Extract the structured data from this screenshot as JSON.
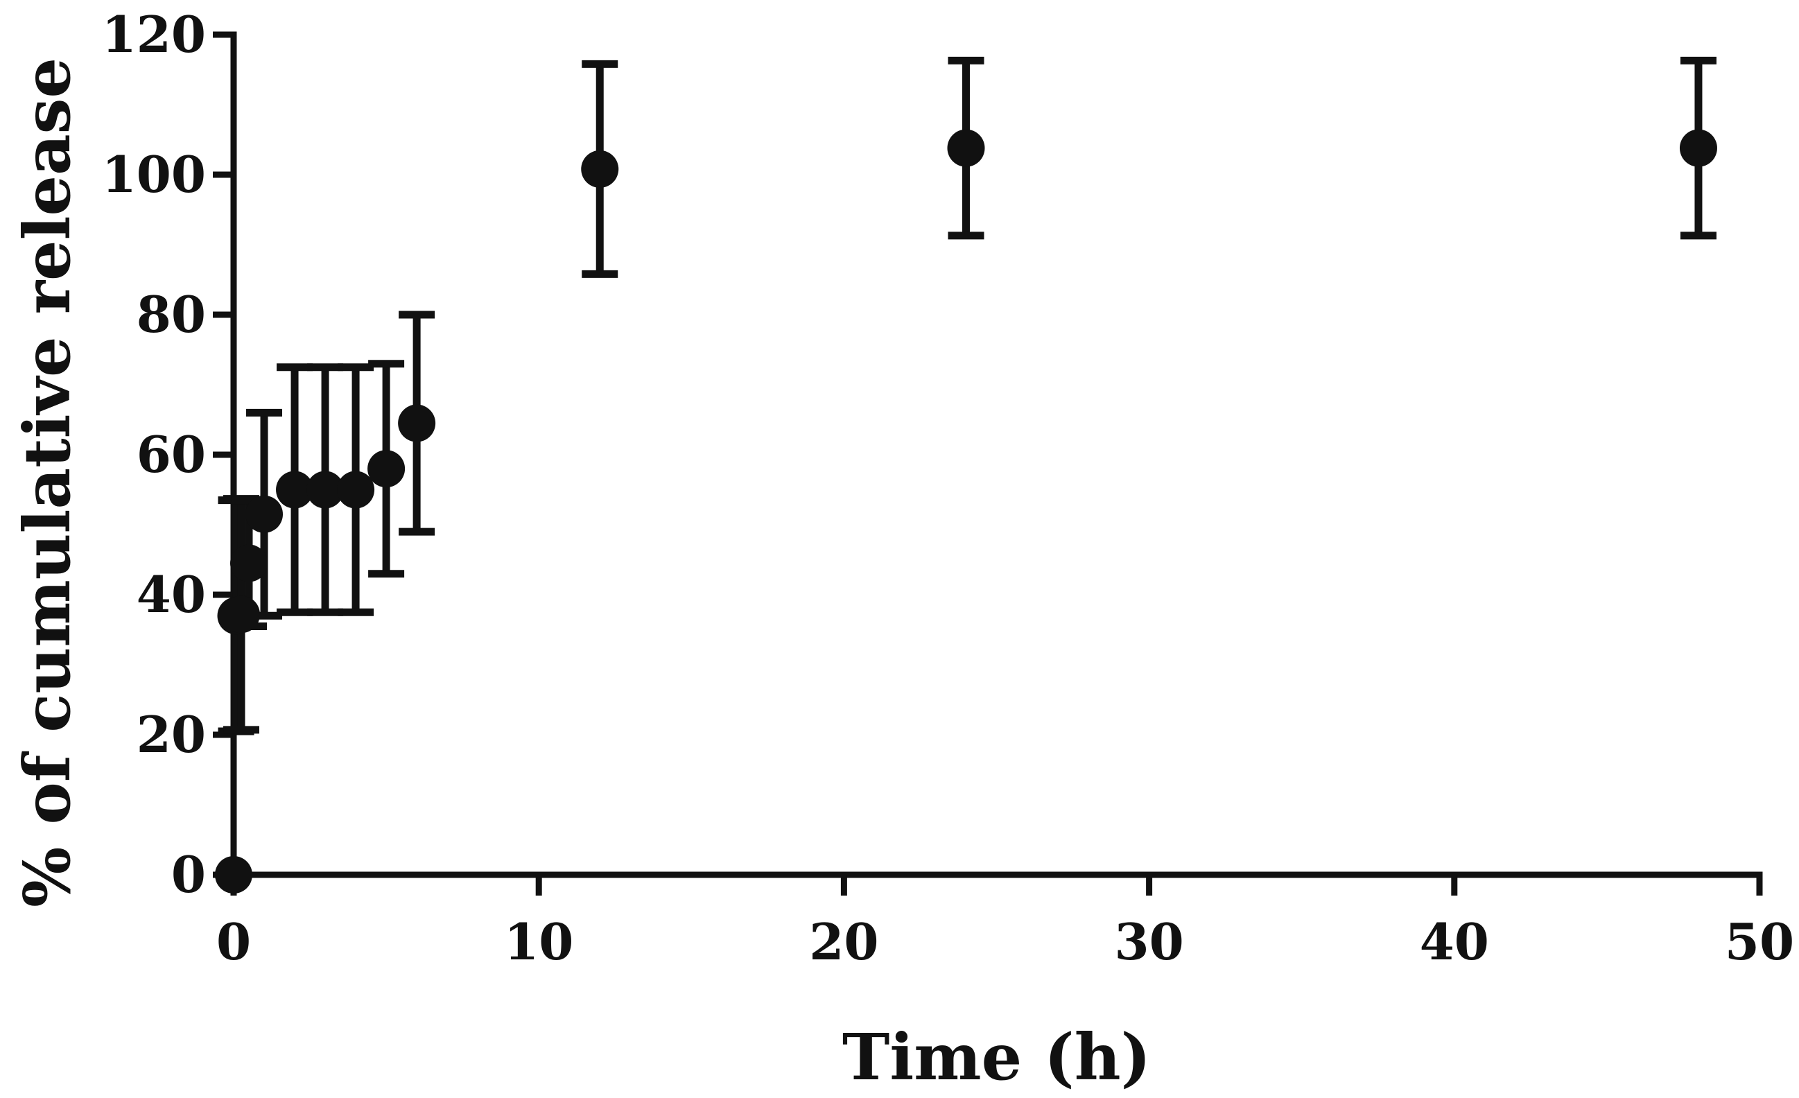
{
  "chart_data": {
    "type": "scatter",
    "title": "",
    "xlabel": "Time (h)",
    "ylabel": "% of cumulative release",
    "xlim": [
      0,
      50
    ],
    "ylim": [
      0,
      120
    ],
    "x_ticks": [
      0,
      10,
      20,
      30,
      40,
      50
    ],
    "y_ticks": [
      0,
      20,
      40,
      60,
      80,
      100,
      120
    ],
    "x_tick_labels": [
      "0",
      "10",
      "20",
      "30",
      "40",
      "50"
    ],
    "y_tick_labels": [
      "0",
      "20",
      "40",
      "60",
      "80",
      "100",
      "120"
    ],
    "grid": false,
    "legend": "none",
    "marker_color": "#111111",
    "series": [
      {
        "points": [
          {
            "x": 0,
            "y": 0,
            "err": 0
          },
          {
            "x": 0.08,
            "y": 37,
            "err": 16.5
          },
          {
            "x": 0.25,
            "y": 37.2,
            "err": 16.5
          },
          {
            "x": 0.5,
            "y": 44.5,
            "err": 9
          },
          {
            "x": 1,
            "y": 51.5,
            "err": 14.5
          },
          {
            "x": 2,
            "y": 55,
            "err": 17.5
          },
          {
            "x": 3,
            "y": 55,
            "err": 17.5
          },
          {
            "x": 4,
            "y": 55,
            "err": 17.5
          },
          {
            "x": 5,
            "y": 58,
            "err": 15
          },
          {
            "x": 6,
            "y": 64.5,
            "err": 15.5
          },
          {
            "x": 12,
            "y": 100.8,
            "err": 15
          },
          {
            "x": 24,
            "y": 103.8,
            "err": 12.5
          },
          {
            "x": 48,
            "y": 103.8,
            "err": 12.5
          }
        ]
      }
    ]
  }
}
